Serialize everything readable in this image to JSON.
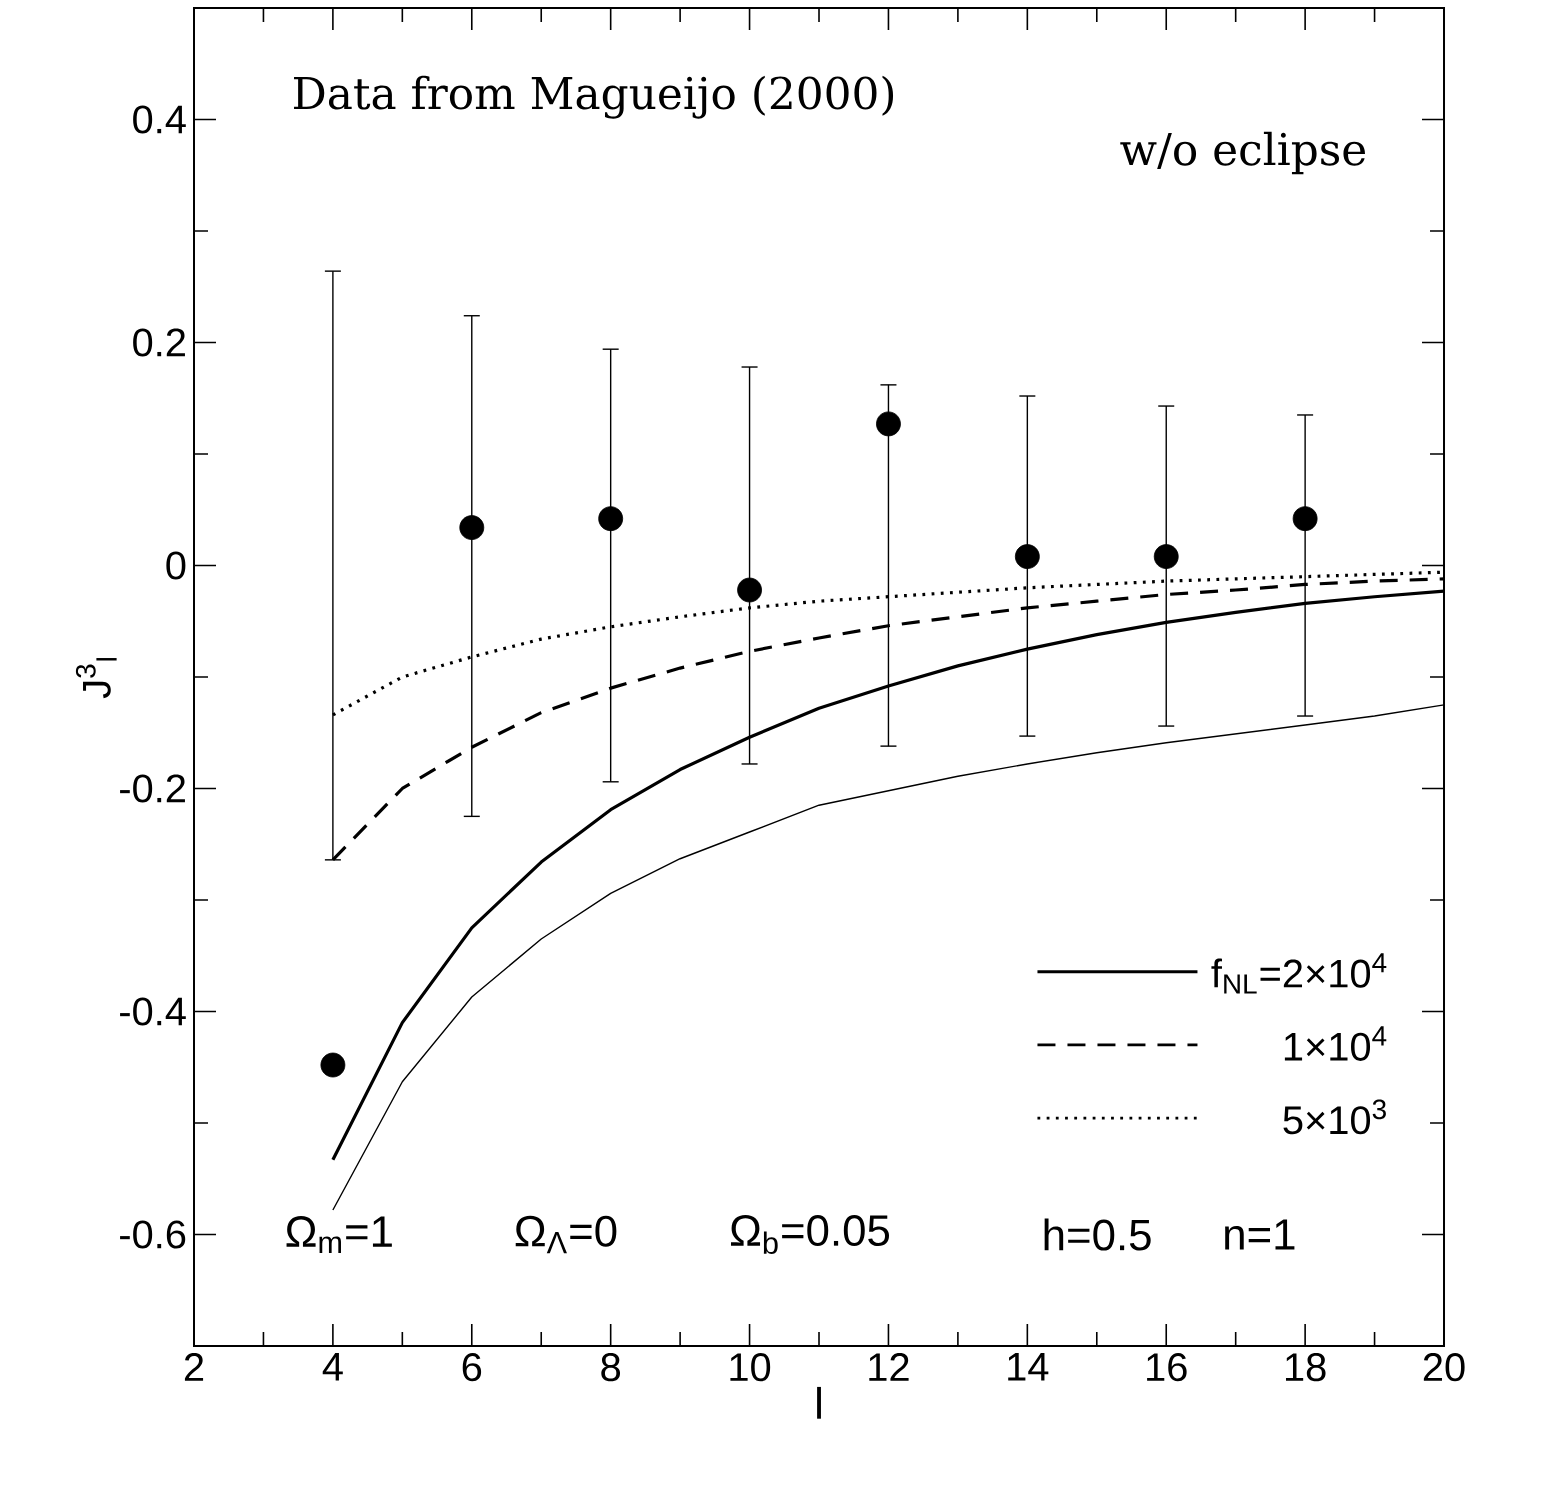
{
  "chart_data": {
    "type": "scatter",
    "xlabel": "l",
    "ylabel": "J$^{3}$$_{l}$",
    "xlim": [
      2,
      20
    ],
    "ylim": [
      -0.7,
      0.5
    ],
    "xticks": [
      2,
      4,
      6,
      8,
      10,
      12,
      14,
      16,
      18,
      20
    ],
    "yticks": [
      -0.6,
      -0.4,
      -0.2,
      0,
      0.2,
      0.4
    ],
    "legend": "bottom right",
    "annotations": [
      "Data from Magueijo (2000)",
      "w/o eclipse",
      "Ω$_{m}$=1",
      "Ω$_{Λ}$=0",
      "Ω$_{b}$=0.05",
      "h=0.5",
      "n=1"
    ],
    "series": [
      {
        "color": "#000000",
        "marker": "circle",
        "x": [
          4,
          6,
          8,
          10,
          12,
          14,
          16,
          18
        ],
        "values": [
          -0.448,
          0.034,
          0.042,
          -0.022,
          0.127,
          0.008,
          0.008,
          0.042
        ],
        "errors": [
          [
            -0.264,
            0.264
          ],
          [
            -0.225,
            0.224
          ],
          [
            -0.194,
            0.194
          ],
          [
            -0.178,
            0.178
          ],
          [
            -0.162,
            0.162
          ],
          [
            -0.153,
            0.152
          ],
          [
            -0.144,
            0.143
          ],
          [
            -0.135,
            0.135
          ]
        ]
      },
      {
        "type": "line",
        "name": "f$_{NL}$=2×10$^{4}$",
        "color": "#000000",
        "line_style": "solid",
        "x": [
          4,
          5,
          6,
          7,
          8,
          9,
          10,
          11,
          12,
          13,
          14,
          15,
          16,
          17,
          18,
          19,
          20
        ],
        "values": [
          -0.533,
          -0.41,
          -0.325,
          -0.266,
          -0.219,
          -0.183,
          -0.154,
          -0.128,
          -0.108,
          -0.09,
          -0.075,
          -0.062,
          -0.051,
          -0.042,
          -0.034,
          -0.028,
          -0.023
        ]
      },
      {
        "type": "line",
        "name": "1×10$^{4}$",
        "color": "#000000",
        "line_style": "dashed",
        "x": [
          4,
          5,
          6,
          7,
          8,
          9,
          10,
          11,
          12,
          13,
          14,
          15,
          16,
          17,
          18,
          19,
          20
        ],
        "values": [
          -0.264,
          -0.2,
          -0.163,
          -0.132,
          -0.11,
          -0.092,
          -0.077,
          -0.065,
          -0.054,
          -0.046,
          -0.038,
          -0.032,
          -0.026,
          -0.022,
          -0.017,
          -0.014,
          -0.012
        ]
      },
      {
        "type": "line",
        "name": "5×10$^{3}$",
        "color": "#000000",
        "line_style": "dotted",
        "x": [
          4,
          5,
          6,
          7,
          8,
          9,
          10,
          11,
          12,
          13,
          14,
          15,
          16,
          17,
          18,
          19,
          20
        ],
        "values": [
          -0.134,
          -0.1,
          -0.082,
          -0.066,
          -0.055,
          -0.046,
          -0.038,
          -0.032,
          -0.028,
          -0.024,
          -0.02,
          -0.017,
          -0.014,
          -0.012,
          -0.01,
          -0.008,
          -0.006
        ]
      },
      {
        "type": "line",
        "color": "#000000",
        "line_style": "solid",
        "x": [
          4,
          5,
          6,
          7,
          8,
          9,
          10,
          11,
          12,
          13,
          14,
          15,
          16,
          17,
          18,
          19,
          20
        ],
        "values": [
          -0.578,
          -0.463,
          -0.387,
          -0.335,
          -0.294,
          -0.263,
          -0.239,
          -0.215,
          -0.202,
          -0.189,
          -0.178,
          -0.168,
          -0.159,
          -0.151,
          -0.143,
          -0.135,
          -0.125
        ]
      }
    ]
  }
}
